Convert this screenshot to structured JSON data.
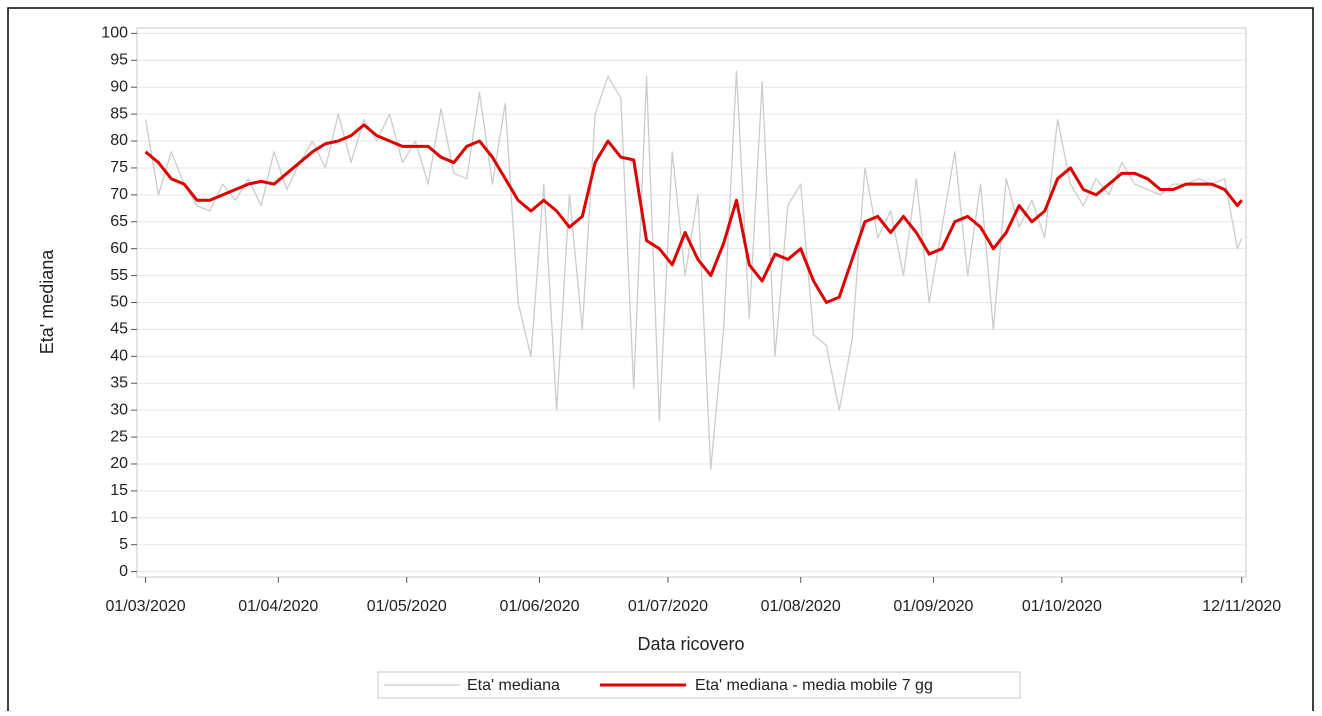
{
  "chart_data": {
    "type": "line",
    "x_label": "Data ricovero",
    "y_label": "Eta' mediana",
    "x": [
      "01/03/2020",
      "04/03/2020",
      "07/03/2020",
      "10/03/2020",
      "13/03/2020",
      "16/03/2020",
      "19/03/2020",
      "22/03/2020",
      "25/03/2020",
      "28/03/2020",
      "31/03/2020",
      "03/04/2020",
      "06/04/2020",
      "09/04/2020",
      "12/04/2020",
      "15/04/2020",
      "18/04/2020",
      "21/04/2020",
      "24/04/2020",
      "27/04/2020",
      "30/04/2020",
      "03/05/2020",
      "06/05/2020",
      "09/05/2020",
      "12/05/2020",
      "15/05/2020",
      "18/05/2020",
      "21/05/2020",
      "24/05/2020",
      "27/05/2020",
      "30/05/2020",
      "02/06/2020",
      "05/06/2020",
      "08/06/2020",
      "11/06/2020",
      "14/06/2020",
      "17/06/2020",
      "20/06/2020",
      "23/06/2020",
      "26/06/2020",
      "29/06/2020",
      "02/07/2020",
      "05/07/2020",
      "08/07/2020",
      "11/07/2020",
      "14/07/2020",
      "17/07/2020",
      "20/07/2020",
      "23/07/2020",
      "26/07/2020",
      "29/07/2020",
      "01/08/2020",
      "04/08/2020",
      "07/08/2020",
      "10/08/2020",
      "13/08/2020",
      "16/08/2020",
      "19/08/2020",
      "22/08/2020",
      "25/08/2020",
      "28/08/2020",
      "31/08/2020",
      "03/09/2020",
      "06/09/2020",
      "09/09/2020",
      "12/09/2020",
      "15/09/2020",
      "18/09/2020",
      "21/09/2020",
      "24/09/2020",
      "27/09/2020",
      "30/09/2020",
      "03/10/2020",
      "06/10/2020",
      "09/10/2020",
      "12/10/2020",
      "15/10/2020",
      "18/10/2020",
      "21/10/2020",
      "24/10/2020",
      "27/10/2020",
      "30/10/2020",
      "02/11/2020",
      "05/11/2020",
      "08/11/2020",
      "11/11/2020",
      "12/11/2020"
    ],
    "series": [
      {
        "name": "Eta' mediana",
        "color": "#cccccc",
        "values": [
          84,
          70,
          78,
          72,
          68,
          67,
          72,
          69,
          73,
          68,
          78,
          71,
          76,
          80,
          75,
          85,
          76,
          84,
          80,
          85,
          76,
          80,
          72,
          86,
          74,
          73,
          89,
          72,
          87,
          50,
          40,
          72,
          30,
          70,
          45,
          85,
          92,
          88,
          34,
          92,
          28,
          78,
          55,
          70,
          19,
          45,
          93,
          47,
          91,
          40,
          68,
          72,
          44,
          42,
          30,
          43,
          75,
          62,
          67,
          55,
          73,
          50,
          64,
          78,
          55,
          72,
          45,
          73,
          64,
          69,
          62,
          84,
          72,
          68,
          73,
          70,
          76,
          72,
          71,
          70,
          72,
          72,
          73,
          72,
          73,
          60,
          62
        ]
      },
      {
        "name": "Eta' mediana - media mobile 7 gg",
        "color": "#e00000",
        "values": [
          78,
          76,
          73,
          72,
          69,
          69,
          70,
          71,
          72,
          72.5,
          72,
          74,
          76,
          78,
          79.5,
          80,
          81,
          83,
          81,
          80,
          79,
          79,
          79,
          77,
          76,
          79,
          80,
          77,
          73,
          69,
          67,
          69,
          67,
          64,
          66,
          76,
          80,
          77,
          76.5,
          61.5,
          60,
          57,
          63,
          58,
          55,
          61,
          69,
          57,
          54,
          59,
          58,
          60,
          54,
          50,
          51,
          58,
          65,
          66,
          63,
          66,
          63,
          59,
          60,
          65,
          66,
          64,
          60,
          63,
          68,
          65,
          67,
          73,
          75,
          71,
          70,
          72,
          74,
          74,
          73,
          71,
          71,
          72,
          72,
          72,
          71,
          68,
          69
        ]
      }
    ],
    "xlim": [
      "28/02/2020",
      "13/11/2020"
    ],
    "xticks": [
      "01/03/2020",
      "01/04/2020",
      "01/05/2020",
      "01/06/2020",
      "01/07/2020",
      "01/08/2020",
      "01/09/2020",
      "01/10/2020",
      "12/11/2020"
    ],
    "ylim": [
      -1,
      101
    ],
    "yticks": [
      0,
      5,
      10,
      15,
      20,
      25,
      30,
      35,
      40,
      45,
      50,
      55,
      60,
      65,
      70,
      75,
      80,
      85,
      90,
      95,
      100
    ],
    "grid": true,
    "legend": "bottom"
  }
}
